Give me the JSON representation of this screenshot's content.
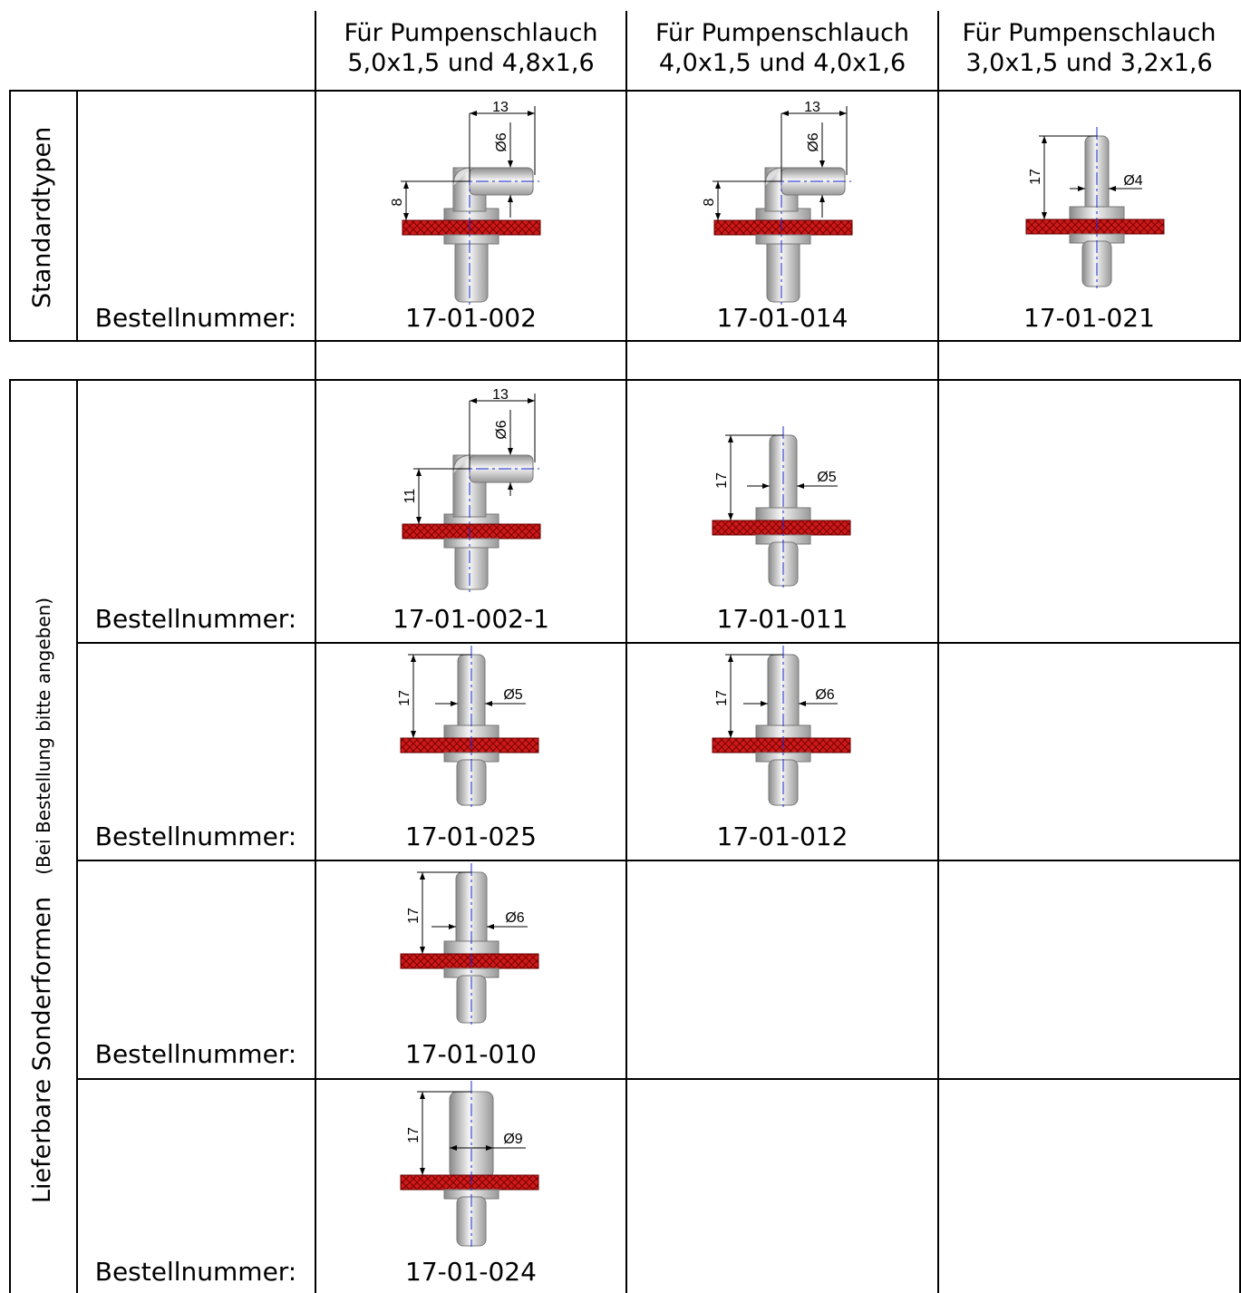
{
  "headers": [
    {
      "line1": "Für Pumpenschlauch",
      "line2": "5,0x1,5 und 4,8x1,6"
    },
    {
      "line1": "Für Pumpenschlauch",
      "line2": "4,0x1,5 und 4,0x1,6"
    },
    {
      "line1": "Für Pumpenschlauch",
      "line2": "3,0x1,5 und 3,2x1,6"
    }
  ],
  "section_standard": {
    "title": "Standardtypen"
  },
  "section_special": {
    "title": "Lieferbare Sonderformen",
    "note": "(Bei Bestellung bitte angeben)"
  },
  "order_label": "Bestellnummer:",
  "colors": {
    "plate": "#cc1a1a",
    "metal": "#c8c8c8",
    "centerline": "#1a2ad6",
    "grid": "#000000"
  },
  "parts": [
    {
      "code": "17-01-002",
      "type": "elbow",
      "dims": {
        "horizontal": "13",
        "diameter": "Ø6",
        "height": "8"
      }
    },
    {
      "code": "17-01-014",
      "type": "elbow",
      "dims": {
        "horizontal": "13",
        "diameter": "Ø6",
        "height": "8"
      }
    },
    {
      "code": "17-01-021",
      "type": "straight",
      "dims": {
        "height": "17",
        "diameter": "Ø4"
      }
    },
    {
      "code": "17-01-002-1",
      "type": "elbow",
      "dims": {
        "horizontal": "13",
        "diameter": "Ø6",
        "height": "11"
      }
    },
    {
      "code": "17-01-011",
      "type": "straight",
      "dims": {
        "height": "17",
        "diameter": "Ø5"
      }
    },
    {
      "code": "17-01-025",
      "type": "straight",
      "dims": {
        "height": "17",
        "diameter": "Ø5"
      }
    },
    {
      "code": "17-01-012",
      "type": "straight",
      "dims": {
        "height": "17",
        "diameter": "Ø6"
      }
    },
    {
      "code": "17-01-010",
      "type": "straight",
      "dims": {
        "height": "17",
        "diameter": "Ø6"
      }
    },
    {
      "code": "17-01-024",
      "type": "straight",
      "dims": {
        "height": "17",
        "diameter": "Ø9"
      }
    }
  ]
}
